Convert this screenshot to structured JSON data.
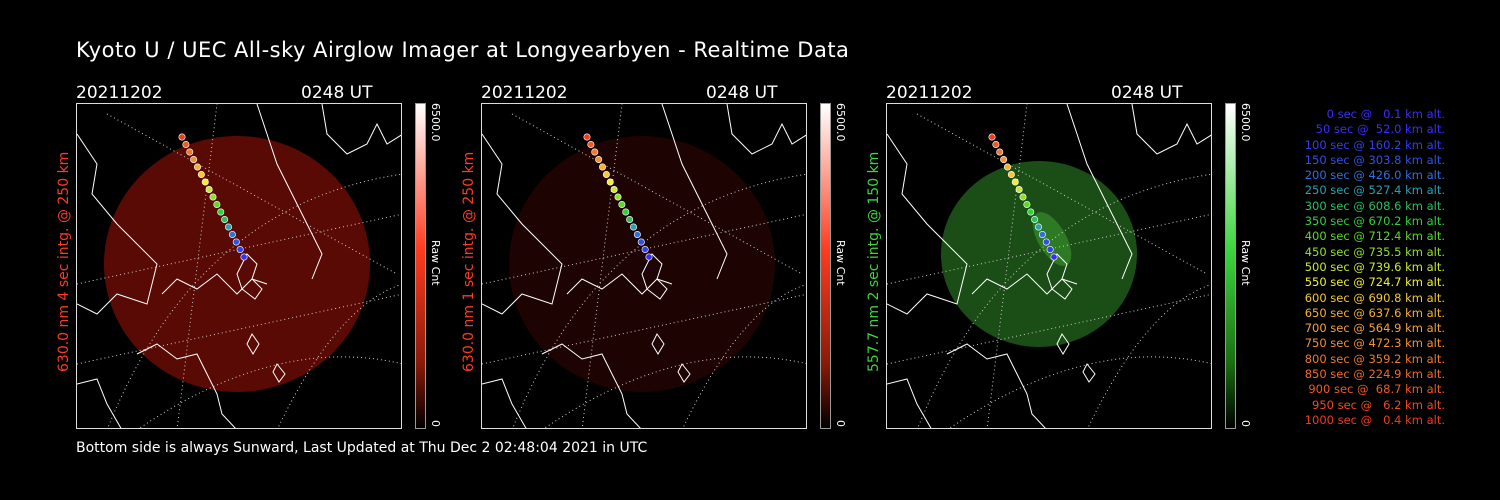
{
  "title": "Kyoto U / UEC All-sky Airglow Imager at Longyearbyen - Realtime Data",
  "footer": "Bottom side is always Sunward, Last Updated at Thu Dec  2 02:48:04 2021 in UTC",
  "panels": [
    {
      "date": "20211202",
      "time": "0248 UT",
      "label": "630.0 nm 4 sec intg. @ 250 km",
      "label_color": "#ff3b1f",
      "cbar_max": "6500.0",
      "cbar_min": "0",
      "cbar_unit": "Raw Cnt",
      "glow_color": "#5a0a04",
      "cbar_top": "#ffffff",
      "cbar_bottom": "#8a1a08"
    },
    {
      "date": "20211202",
      "time": "0248 UT",
      "label": "630.0 nm 1 sec intg. @ 250 km",
      "label_color": "#ff3b1f",
      "cbar_max": "6500.0",
      "cbar_min": "0",
      "cbar_unit": "Raw Cnt",
      "glow_color": "#1d0302",
      "cbar_top": "#ffffff",
      "cbar_bottom": "#8a1a08"
    },
    {
      "date": "20211202",
      "time": "0248 UT",
      "label": "557.7 nm 2 sec intg. @ 150 km",
      "label_color": "#3ed43e",
      "cbar_max": "6500.0",
      "cbar_min": "0",
      "cbar_unit": "Raw Cnt",
      "glow_color": "#1b4d16",
      "cbar_top": "#ffffff",
      "cbar_bottom": "#1a6e12"
    }
  ],
  "legend": [
    {
      "text": "0 sec @   0.1 km alt.",
      "color": "#3c2cff"
    },
    {
      "text": "50 sec @  52.0 km alt.",
      "color": "#3c2cff"
    },
    {
      "text": "100 sec @ 160.2 km alt.",
      "color": "#3040f0"
    },
    {
      "text": "150 sec @ 303.8 km alt.",
      "color": "#3050e8"
    },
    {
      "text": "200 sec @ 426.0 km alt.",
      "color": "#2e70e0"
    },
    {
      "text": "250 sec @ 527.4 km alt.",
      "color": "#2aa0b0"
    },
    {
      "text": "300 sec @ 608.6 km alt.",
      "color": "#28c060"
    },
    {
      "text": "350 sec @ 670.2 km alt.",
      "color": "#2ed23a"
    },
    {
      "text": "400 sec @ 712.4 km alt.",
      "color": "#5ad82a"
    },
    {
      "text": "450 sec @ 735.5 km alt.",
      "color": "#8ee02a"
    },
    {
      "text": "500 sec @ 739.6 km alt.",
      "color": "#c8e830"
    },
    {
      "text": "550 sec @ 724.7 km alt.",
      "color": "#f0f030"
    },
    {
      "text": "600 sec @ 690.8 km alt.",
      "color": "#f8c830"
    },
    {
      "text": "650 sec @ 637.6 km alt.",
      "color": "#f8b030"
    },
    {
      "text": "700 sec @ 564.9 km alt.",
      "color": "#f8a040"
    },
    {
      "text": "750 sec @ 472.3 km alt.",
      "color": "#f89030"
    },
    {
      "text": "800 sec @ 359.2 km alt.",
      "color": "#f07828"
    },
    {
      "text": "850 sec @ 224.9 km alt.",
      "color": "#f06a28"
    },
    {
      "text": "900 sec @  68.7 km alt.",
      "color": "#f05a20"
    },
    {
      "text": "950 sec @   6.2 km alt.",
      "color": "#f04a20"
    },
    {
      "text": "1000 sec @   0.4 km alt.",
      "color": "#f03a20"
    }
  ]
}
